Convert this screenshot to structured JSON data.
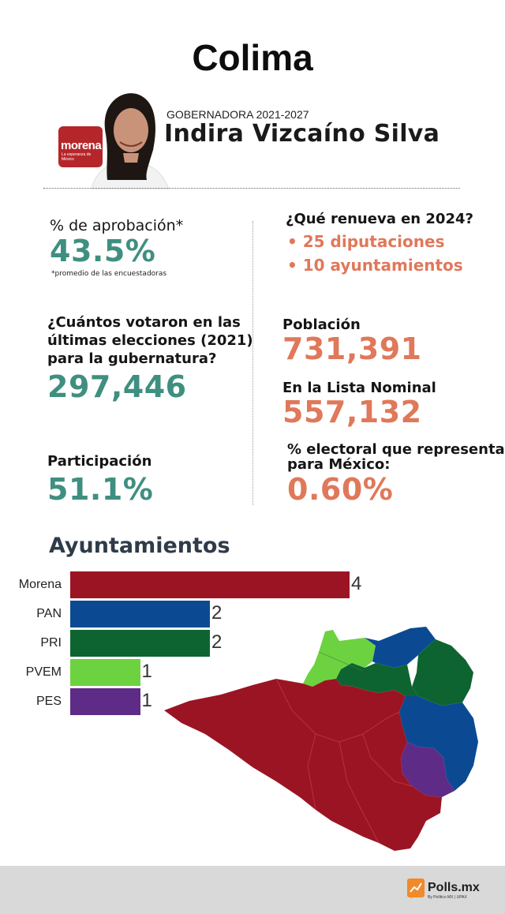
{
  "title": "Colima",
  "governor": {
    "label": "GOBERNADORA 2021-2027",
    "name": "Indira Vizcaíno Silva",
    "party_logo_text": "morena",
    "party_logo_tagline": "La esperanza de México"
  },
  "approval": {
    "label": "% de aprobación*",
    "value": "43.5%",
    "note": "*promedio de las encuestadoras"
  },
  "renews": {
    "label": "¿Qué renueva en 2024?",
    "items": [
      "• 25 diputaciones",
      "• 10 ayuntamientos"
    ]
  },
  "voters": {
    "label_lines": [
      "¿Cuántos votaron en las",
      "últimas elecciones (2021)",
      "para la gubernatura?"
    ],
    "value": "297,446"
  },
  "population": {
    "label": "Población",
    "value": "731,391"
  },
  "nominal": {
    "label": "En la Lista Nominal",
    "value": "557,132"
  },
  "participation": {
    "label": "Participación",
    "value": "51.1%"
  },
  "electoral_share": {
    "label_lines": [
      "% electoral que representa",
      "para México:"
    ],
    "value": "0.60%"
  },
  "ayuntamientos": {
    "title": "Ayuntamientos"
  },
  "chart_data": {
    "type": "bar",
    "orientation": "horizontal",
    "title": "Ayuntamientos",
    "categories": [
      "Morena",
      "PAN",
      "PRI",
      "PVEM",
      "PES"
    ],
    "values": [
      4,
      2,
      2,
      1,
      1
    ],
    "colors": [
      "#9b1424",
      "#0b4a93",
      "#0e6430",
      "#6dd240",
      "#5e2b86"
    ],
    "xlim": [
      0,
      4
    ]
  },
  "map_colors": {
    "morena": "#9b1424",
    "pan": "#0b4a93",
    "pri": "#0e6430",
    "pvem": "#6dd240",
    "pes": "#5e2b86"
  },
  "footer": {
    "brand": "Polls.mx",
    "sub": "By Político MX | UPAX"
  }
}
